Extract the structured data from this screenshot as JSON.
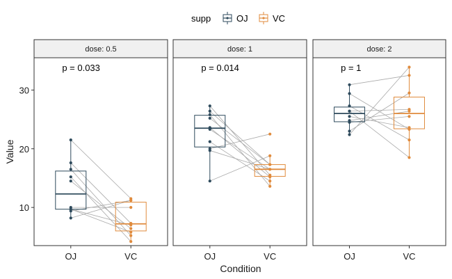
{
  "chart_data": {
    "type": "box-paired",
    "xlabel": "Condition",
    "ylabel": "Value",
    "ylim": [
      3.5,
      35.5
    ],
    "yticks": [
      10,
      20,
      30
    ],
    "categories": [
      "OJ",
      "VC"
    ],
    "legend": {
      "title": "supp",
      "position": "top",
      "items": [
        {
          "name": "OJ",
          "color": "#2e4a5c"
        },
        {
          "name": "VC",
          "color": "#e08b3d"
        }
      ]
    },
    "panels": [
      {
        "strip": "dose: 0.5",
        "pvalue": "p = 0.033",
        "OJ": [
          15.2,
          21.5,
          17.6,
          9.7,
          14.5,
          10.0,
          8.2,
          9.4,
          16.5,
          9.7
        ],
        "VC": [
          4.2,
          11.5,
          7.3,
          5.8,
          6.4,
          10.0,
          11.2,
          11.2,
          5.2,
          7.0
        ],
        "boxes": {
          "OJ": {
            "q1": 9.7,
            "median": 12.3,
            "q3": 16.2,
            "whisker_low": 8.2,
            "whisker_high": 21.5
          },
          "VC": {
            "q1": 6.0,
            "median": 7.2,
            "q3": 10.9,
            "whisker_low": 4.2,
            "whisker_high": 11.5
          }
        }
      },
      {
        "strip": "dose: 1",
        "pvalue": "p = 0.014",
        "OJ": [
          19.7,
          23.3,
          23.6,
          26.4,
          20.0,
          25.2,
          25.8,
          21.2,
          14.5,
          27.3
        ],
        "VC": [
          16.5,
          16.5,
          15.2,
          17.3,
          22.5,
          17.3,
          13.6,
          14.5,
          18.8,
          15.5
        ],
        "boxes": {
          "OJ": {
            "q1": 20.3,
            "median": 23.5,
            "q3": 25.7,
            "whisker_low": 14.5,
            "whisker_high": 27.3
          },
          "VC": {
            "q1": 15.3,
            "median": 16.5,
            "q3": 17.3,
            "whisker_low": 13.6,
            "whisker_high": 18.8
          }
        }
      },
      {
        "strip": "dose: 2",
        "pvalue": "p = 1",
        "OJ": [
          25.5,
          26.4,
          22.4,
          24.5,
          24.8,
          30.9,
          26.4,
          27.3,
          29.4,
          23.0
        ],
        "VC": [
          23.6,
          18.5,
          33.9,
          25.5,
          26.4,
          32.5,
          26.7,
          21.5,
          23.3,
          29.5
        ],
        "boxes": {
          "OJ": {
            "q1": 24.6,
            "median": 26.0,
            "q3": 27.1,
            "whisker_low": 22.4,
            "whisker_high": 30.9
          },
          "VC": {
            "q1": 23.4,
            "median": 26.0,
            "q3": 28.8,
            "whisker_low": 18.5,
            "whisker_high": 33.9
          }
        }
      }
    ]
  }
}
